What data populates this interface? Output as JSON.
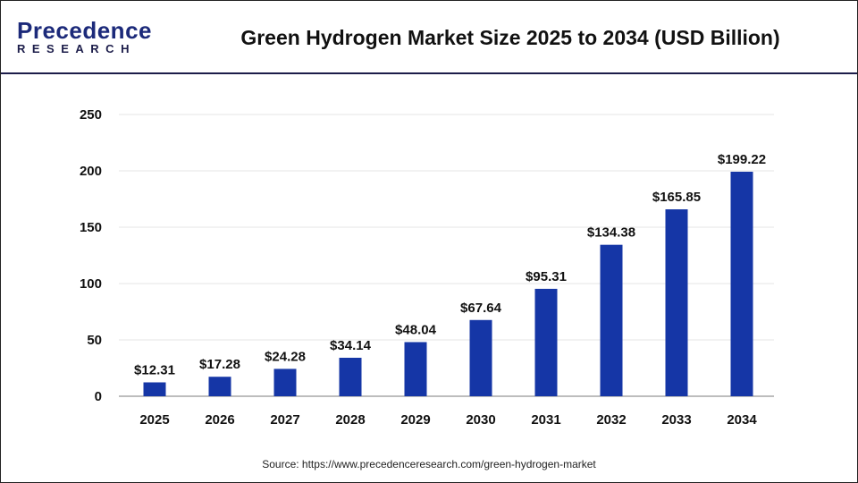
{
  "logo": {
    "line1": "Precedence",
    "line2": "RESEARCH"
  },
  "title": "Green Hydrogen Market Size 2025 to 2034 (USD Billion)",
  "source": "Source: https://www.precedenceresearch.com/green-hydrogen-market",
  "colors": {
    "bar": "#1536a6",
    "grid": "#e6e6e6",
    "axis": "#bdbdbd"
  },
  "chart_data": {
    "type": "bar",
    "title": "Green Hydrogen Market Size 2025 to 2034 (USD Billion)",
    "categories": [
      "2025",
      "2026",
      "2027",
      "2028",
      "2029",
      "2030",
      "2031",
      "2032",
      "2033",
      "2034"
    ],
    "values": [
      12.31,
      17.28,
      24.28,
      34.14,
      48.04,
      67.64,
      95.31,
      134.38,
      165.85,
      199.22
    ],
    "data_labels": [
      "$12.31",
      "$17.28",
      "$24.28",
      "$34.14",
      "$48.04",
      "$67.64",
      "$95.31",
      "$134.38",
      "$165.85",
      "$199.22"
    ],
    "yticks": [
      0,
      50,
      100,
      150,
      200,
      250
    ],
    "ylim": [
      0,
      250
    ],
    "grid": true,
    "xlabel": "",
    "ylabel": ""
  }
}
